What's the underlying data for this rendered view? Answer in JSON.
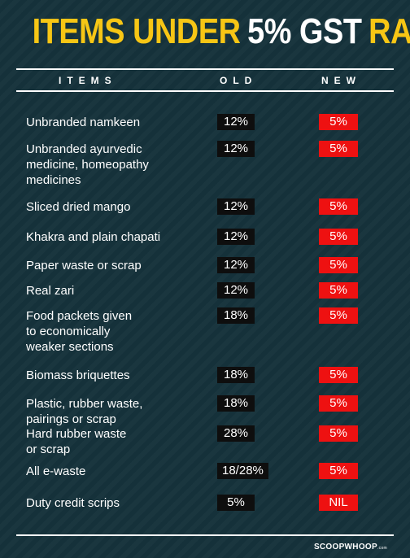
{
  "header": {
    "title": [
      "ITEMS UNDER",
      "5% GST",
      "RATE"
    ]
  },
  "table": {
    "columns": [
      "ITEMS",
      "OLD",
      "NEW"
    ],
    "rows": [
      {
        "item": [
          "Unbranded namkeen"
        ],
        "old": "12%",
        "new": "5%"
      },
      {
        "item": [
          "Unbranded ayurvedic",
          "medicine, homeopathy",
          "medicines"
        ],
        "old": "12%",
        "new": "5%"
      },
      {
        "item": [
          "Sliced dried mango"
        ],
        "old": "12%",
        "new": "5%"
      },
      {
        "item": [
          "Khakra and plain chapati"
        ],
        "old": "12%",
        "new": "5%"
      },
      {
        "item": [
          "Paper waste or scrap"
        ],
        "old": "12%",
        "new": "5%"
      },
      {
        "item": [
          "Real zari"
        ],
        "old": "12%",
        "new": "5%"
      },
      {
        "item": [
          "Food packets given",
          "to economically",
          "weaker sections"
        ],
        "old": "18%",
        "new": "5%"
      },
      {
        "item": [
          "Biomass briquettes"
        ],
        "old": "18%",
        "new": "5%"
      },
      {
        "item": [
          "Plastic, rubber waste,",
          "pairings or scrap"
        ],
        "old": "18%",
        "new": "5%"
      },
      {
        "item": [
          "Hard rubber waste",
          "or scrap"
        ],
        "old": "28%",
        "new": "5%"
      },
      {
        "item": [
          "All e-waste"
        ],
        "old": "18/28%",
        "new": "5%"
      },
      {
        "item": [
          "Duty credit scrips"
        ],
        "old": "5%",
        "new": "NIL"
      }
    ]
  },
  "footer": {
    "brand": "SCOOPWHOOP",
    "suffix": ".com"
  }
}
